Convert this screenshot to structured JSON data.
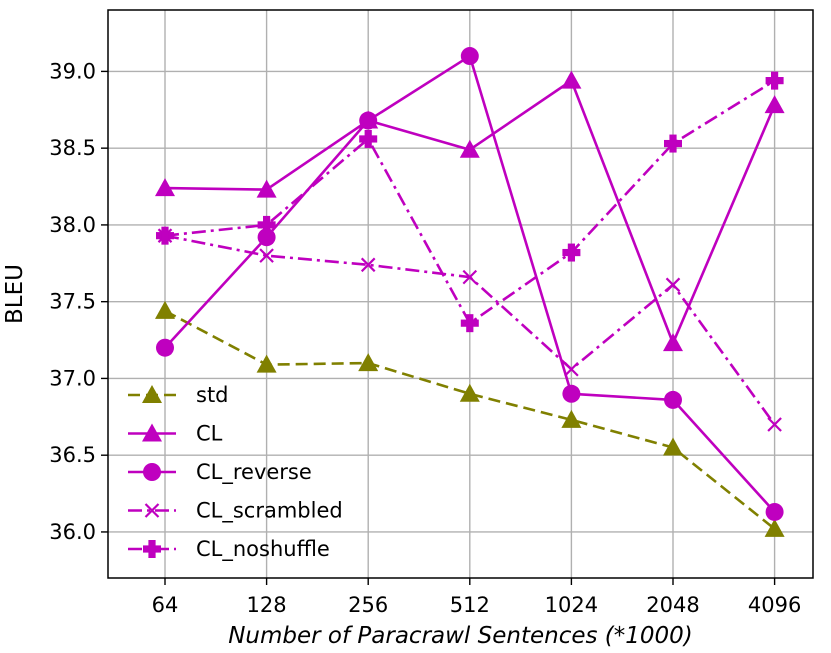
{
  "chart_data": {
    "type": "line",
    "xlabel": "Number of Paracrawl Sentences (*1000)",
    "ylabel": "BLEU",
    "categories": [
      "64",
      "128",
      "256",
      "512",
      "1024",
      "2048",
      "4096"
    ],
    "ylim": [
      35.7,
      39.4
    ],
    "yticks": [
      "36.0",
      "36.5",
      "37.0",
      "37.5",
      "38.0",
      "38.5",
      "39.0"
    ],
    "grid": true,
    "legend_position": "lower-left",
    "series": [
      {
        "name": "std",
        "values": [
          37.44,
          37.09,
          37.1,
          36.9,
          36.73,
          36.55,
          36.02
        ],
        "color": "#808000",
        "line": "dashed",
        "marker": "triangle"
      },
      {
        "name": "CL",
        "values": [
          38.24,
          38.23,
          38.68,
          38.49,
          38.94,
          37.23,
          38.78
        ],
        "color": "#bf00bf",
        "line": "solid",
        "marker": "triangle"
      },
      {
        "name": "CL_reverse",
        "values": [
          37.2,
          37.92,
          38.68,
          39.1,
          36.9,
          36.86,
          36.13
        ],
        "color": "#bf00bf",
        "line": "solid",
        "marker": "circle"
      },
      {
        "name": "CL_scrambled",
        "values": [
          37.93,
          37.8,
          37.74,
          37.66,
          37.06,
          37.61,
          36.7
        ],
        "color": "#bf00bf",
        "line": "dashdot",
        "marker": "x"
      },
      {
        "name": "CL_noshuffle",
        "values": [
          37.93,
          38.0,
          38.56,
          37.36,
          37.82,
          38.53,
          38.94
        ],
        "color": "#bf00bf",
        "line": "dashdot",
        "marker": "plus"
      }
    ]
  }
}
